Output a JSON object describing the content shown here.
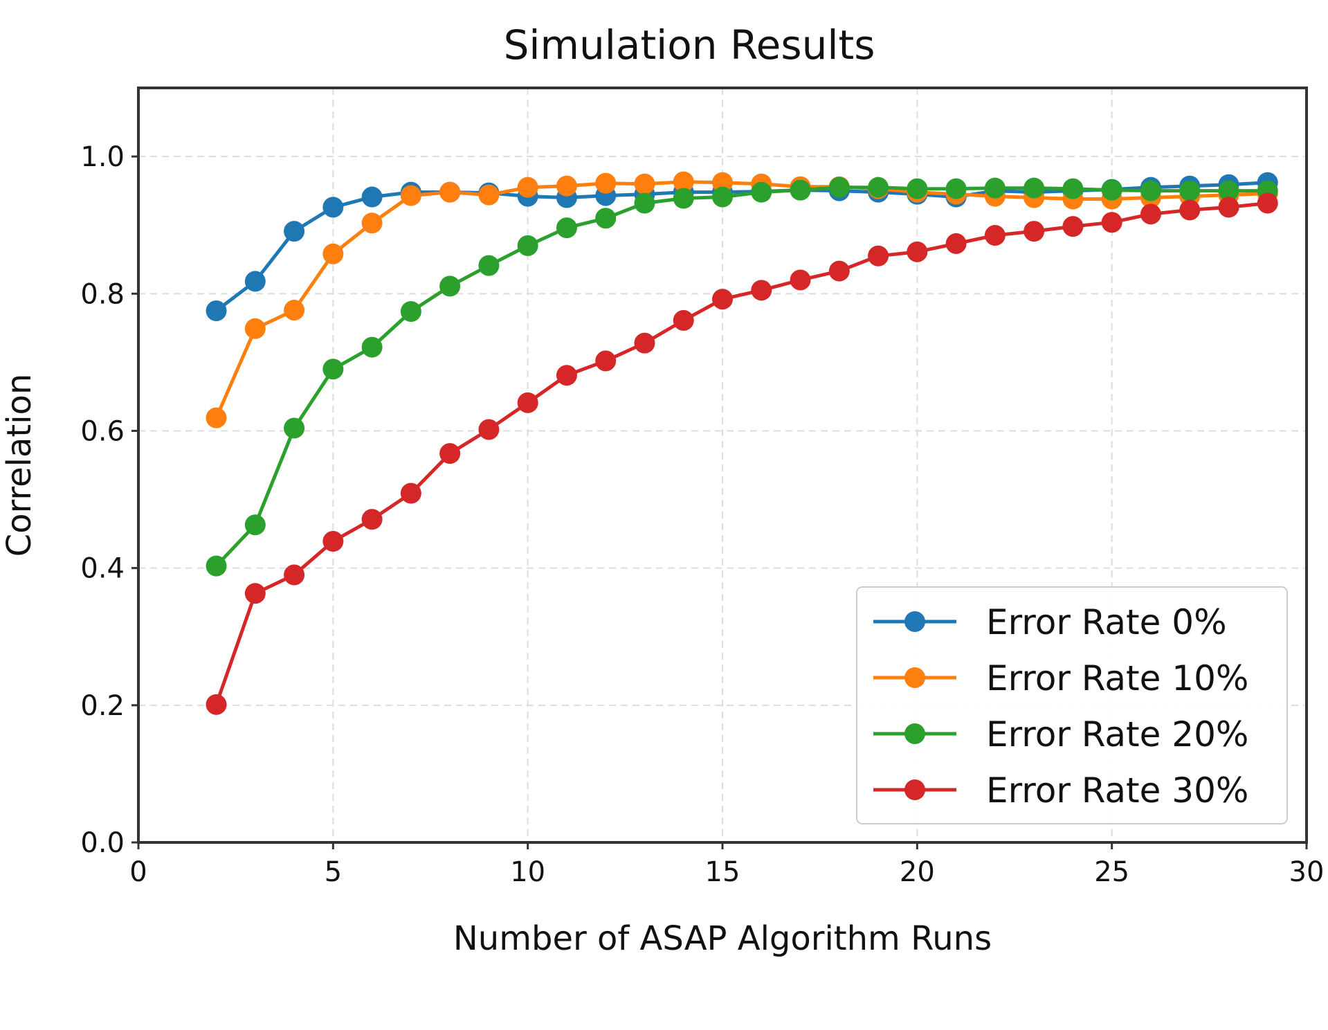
{
  "chart_data": {
    "type": "line",
    "title": "Simulation Results",
    "xlabel": "Number of ASAP Algorithm Runs",
    "ylabel": "Correlation",
    "xlim": [
      0,
      30
    ],
    "ylim": [
      0,
      1.1
    ],
    "xticks": [
      0,
      5,
      10,
      15,
      20,
      25,
      30
    ],
    "yticks": [
      0.0,
      0.2,
      0.4,
      0.6,
      0.8,
      1.0
    ],
    "ytick_labels": [
      "0.0",
      "0.2",
      "0.4",
      "0.6",
      "0.8",
      "1.0"
    ],
    "grid": true,
    "legend_position": "lower-right",
    "x": [
      2,
      3,
      4,
      5,
      6,
      7,
      8,
      9,
      10,
      11,
      12,
      13,
      14,
      15,
      16,
      17,
      18,
      19,
      20,
      21,
      22,
      23,
      24,
      25,
      26,
      27,
      28,
      29
    ],
    "series": [
      {
        "name": "Error Rate 0%",
        "color": "#1f77b4",
        "values": [
          0.775,
          0.818,
          0.891,
          0.926,
          0.941,
          0.948,
          0.948,
          0.947,
          0.942,
          0.94,
          0.943,
          0.945,
          0.948,
          0.948,
          0.949,
          0.951,
          0.95,
          0.948,
          0.945,
          0.941,
          0.95,
          0.948,
          0.95,
          0.952,
          0.955,
          0.957,
          0.959,
          0.962
        ]
      },
      {
        "name": "Error Rate 10%",
        "color": "#ff7f0e",
        "values": [
          0.619,
          0.749,
          0.776,
          0.858,
          0.903,
          0.943,
          0.948,
          0.944,
          0.955,
          0.957,
          0.961,
          0.96,
          0.963,
          0.962,
          0.96,
          0.956,
          0.956,
          0.953,
          0.948,
          0.945,
          0.942,
          0.94,
          0.938,
          0.938,
          0.94,
          0.942,
          0.944,
          0.946
        ]
      },
      {
        "name": "Error Rate 20%",
        "color": "#2ca02c",
        "values": [
          0.403,
          0.463,
          0.604,
          0.69,
          0.722,
          0.774,
          0.811,
          0.841,
          0.87,
          0.896,
          0.91,
          0.932,
          0.939,
          0.941,
          0.948,
          0.951,
          0.955,
          0.955,
          0.953,
          0.953,
          0.954,
          0.954,
          0.953,
          0.951,
          0.95,
          0.95,
          0.95,
          0.95
        ]
      },
      {
        "name": "Error Rate 30%",
        "color": "#d62728",
        "values": [
          0.201,
          0.363,
          0.39,
          0.439,
          0.471,
          0.509,
          0.567,
          0.602,
          0.641,
          0.681,
          0.702,
          0.728,
          0.761,
          0.792,
          0.805,
          0.82,
          0.833,
          0.855,
          0.861,
          0.873,
          0.885,
          0.891,
          0.898,
          0.904,
          0.916,
          0.922,
          0.926,
          0.932
        ]
      }
    ]
  }
}
